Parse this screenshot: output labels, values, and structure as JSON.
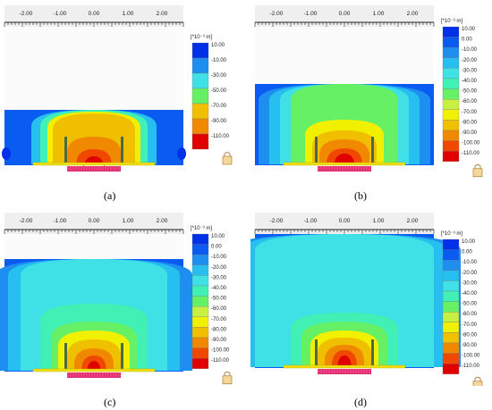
{
  "panels": [
    {
      "id": "a",
      "caption": "(a)",
      "ruler_ticks": [
        "-2.00",
        "-1.00",
        "0.00",
        "1.00",
        "2.00"
      ],
      "colorbar_unit": "[*10⁻³ m]",
      "colorbar_labels": [
        "10.00",
        "-10.00",
        "-30.00",
        "-50.00",
        "-70.00",
        "-90.00",
        "-110.00"
      ],
      "lock_icon": "lock-icon"
    },
    {
      "id": "b",
      "caption": "(b)",
      "ruler_ticks": [
        "-2.00",
        "-1.00",
        "0.00",
        "1.00",
        "2.00"
      ],
      "colorbar_unit": "[*10⁻³ m]",
      "colorbar_labels": [
        "10.00",
        "0.00",
        "-10.00",
        "-20.00",
        "-30.00",
        "-40.00",
        "-50.00",
        "-60.00",
        "-70.00",
        "-80.00",
        "-90.00",
        "-100.00",
        "-110.00"
      ],
      "lock_icon": "lock-icon"
    },
    {
      "id": "c",
      "caption": "(c)",
      "ruler_ticks": [
        "-2.00",
        "-1.00",
        "0.00",
        "1.00",
        "2.00"
      ],
      "colorbar_unit": "[*10⁻³ m]",
      "colorbar_labels": [
        "10.00",
        "0.00",
        "-10.00",
        "-20.00",
        "-30.00",
        "-40.00",
        "-50.00",
        "-60.00",
        "-70.00",
        "-80.00",
        "-90.00",
        "-100.00",
        "-110.00"
      ],
      "lock_icon": "lock-icon"
    },
    {
      "id": "d",
      "caption": "(d)",
      "ruler_ticks": [
        "-2.00",
        "-1.00",
        "0.00",
        "1.00",
        "2.00"
      ],
      "colorbar_unit": "[*10⁻³ m]",
      "colorbar_labels": [
        "10.00",
        "0.00",
        "-10.00",
        "-20.00",
        "-30.00",
        "-40.00",
        "-50.00",
        "-60.00",
        "-70.00",
        "-80.00",
        "-90.00",
        "-100.00",
        "-110.00"
      ],
      "lock_icon": "lock-icon"
    }
  ],
  "palette": {
    "bg_blue": "#1f4fe6",
    "contour_colors": [
      "#0030e8",
      "#0a5cf0",
      "#1e8ef0",
      "#26bff0",
      "#3fe0e6",
      "#40f0b4",
      "#66f066",
      "#c8f040",
      "#f0f000",
      "#f0c000",
      "#f08800",
      "#f04800",
      "#e00000"
    ],
    "footing_color": "#e0286e",
    "beam_color": "#f0e010",
    "pile_color": "#4a6a4a"
  }
}
